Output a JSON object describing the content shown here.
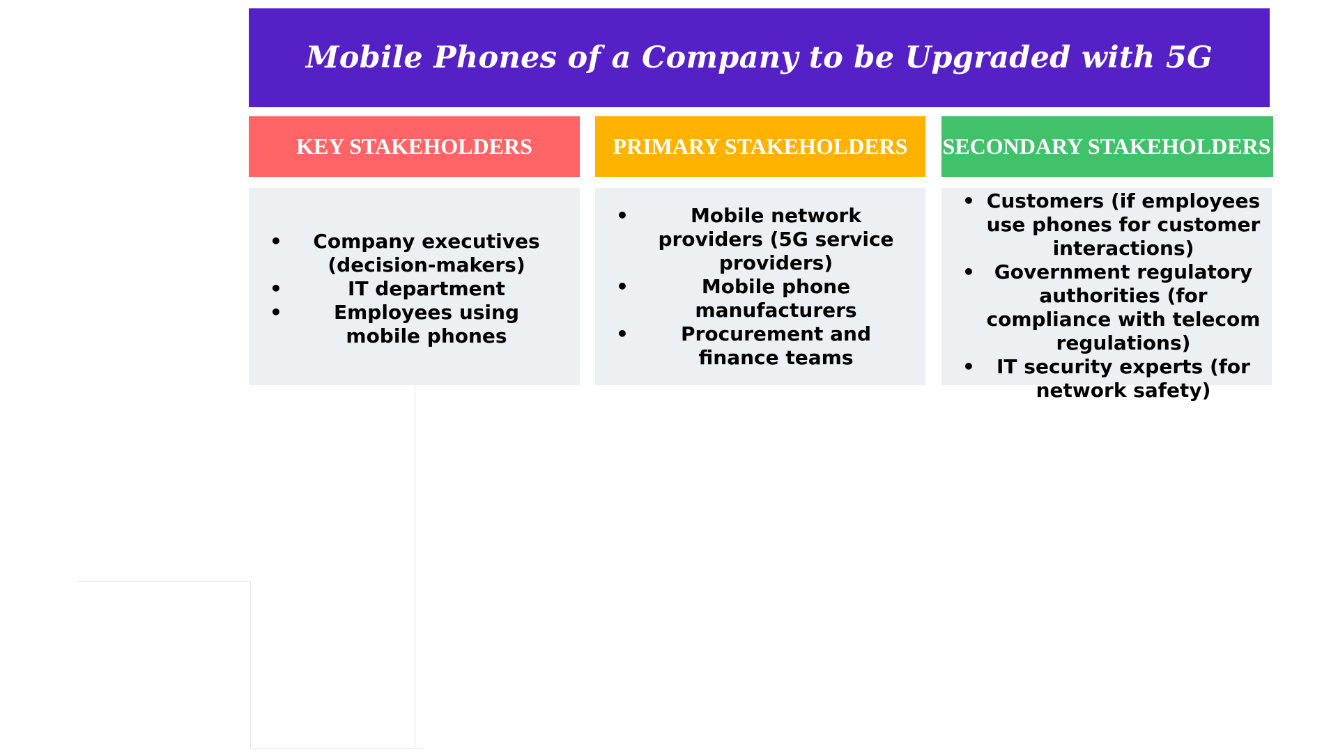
{
  "title": "Mobile Phones of a Company to be Upgraded with 5G",
  "columns": [
    {
      "header": "KEY STAKEHOLDERS",
      "color": "#FF6566",
      "items": [
        "Company executives (decision-makers)",
        "IT department",
        "Employees using mobile phones"
      ]
    },
    {
      "header": "PRIMARY STAKEHOLDERS",
      "color": "#FFB300",
      "items": [
        "Mobile network providers (5G service providers)",
        "Mobile phone manufacturers",
        "Procurement and finance teams"
      ]
    },
    {
      "header": "SECONDARY STAKEHOLDERS",
      "color": "#41C26A",
      "items": [
        "Customers (if employees use phones for customer interactions)",
        "Government regulatory authorities (for compliance with telecom regulations)",
        "IT security experts (for network safety)"
      ]
    }
  ],
  "colors": {
    "title_bg": "#5520C6",
    "body_bg": "#EDF0F2"
  }
}
